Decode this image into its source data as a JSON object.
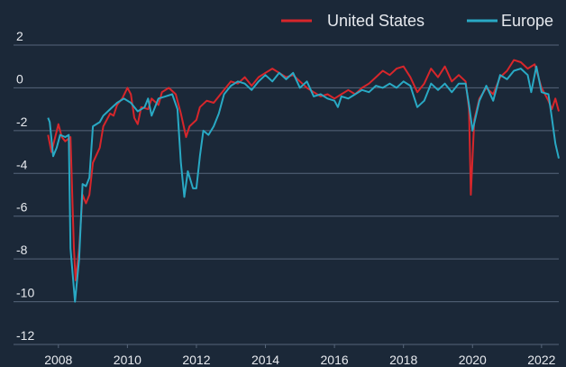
{
  "chart_data": {
    "type": "line",
    "series": [
      {
        "name": "United States",
        "color": "#d7262b",
        "x": [
          2007.7,
          2007.8,
          2008.0,
          2008.1,
          2008.2,
          2008.35,
          2008.45,
          2008.5,
          2008.6,
          2008.7,
          2008.8,
          2008.9,
          2009.0,
          2009.2,
          2009.3,
          2009.5,
          2009.6,
          2009.7,
          2009.85,
          2010.0,
          2010.1,
          2010.2,
          2010.3,
          2010.4,
          2010.6,
          2010.7,
          2010.9,
          2011.0,
          2011.2,
          2011.4,
          2011.55,
          2011.7,
          2011.8,
          2012.0,
          2012.1,
          2012.3,
          2012.5,
          2012.7,
          2012.85,
          2013.0,
          2013.2,
          2013.4,
          2013.6,
          2013.8,
          2014.0,
          2014.2,
          2014.4,
          2014.6,
          2014.8,
          2015.0,
          2015.2,
          2015.4,
          2015.6,
          2015.8,
          2016.0,
          2016.2,
          2016.4,
          2016.6,
          2016.8,
          2017.0,
          2017.2,
          2017.4,
          2017.6,
          2017.8,
          2018.0,
          2018.2,
          2018.4,
          2018.6,
          2018.8,
          2019.0,
          2019.2,
          2019.4,
          2019.6,
          2019.8,
          2019.9,
          2019.95,
          2020.05,
          2020.2,
          2020.4,
          2020.6,
          2020.8,
          2021.0,
          2021.2,
          2021.4,
          2021.6,
          2021.8,
          2022.0,
          2022.2,
          2022.3,
          2022.4,
          2022.5
        ],
        "values": [
          -2.2,
          -3.0,
          -1.7,
          -2.3,
          -2.5,
          -2.3,
          -7.5,
          -9.0,
          -7.5,
          -5.0,
          -5.4,
          -5.0,
          -3.5,
          -2.8,
          -1.8,
          -1.2,
          -1.3,
          -0.8,
          -0.5,
          0.0,
          -0.3,
          -1.4,
          -1.7,
          -0.9,
          -1.0,
          -0.5,
          -0.8,
          -0.2,
          0.0,
          -0.3,
          -1.2,
          -2.3,
          -1.8,
          -1.5,
          -0.9,
          -0.6,
          -0.7,
          -0.3,
          0.0,
          0.3,
          0.2,
          0.5,
          0.1,
          0.5,
          0.7,
          0.9,
          0.7,
          0.5,
          0.6,
          0.3,
          0.0,
          -0.2,
          -0.4,
          -0.3,
          -0.5,
          -0.3,
          -0.1,
          -0.3,
          0.0,
          0.2,
          0.5,
          0.8,
          0.6,
          0.9,
          1.0,
          0.5,
          -0.2,
          0.2,
          0.9,
          0.5,
          1.0,
          0.3,
          0.6,
          0.3,
          -1.0,
          -5.0,
          -1.5,
          -0.5,
          0.0,
          -0.3,
          0.5,
          0.8,
          1.3,
          1.2,
          0.9,
          1.1,
          0.0,
          -0.6,
          -1.0,
          -0.5,
          -1.1
        ]
      },
      {
        "name": "Europe",
        "color": "#29a9c4",
        "x": [
          2007.7,
          2007.75,
          2007.85,
          2007.95,
          2008.05,
          2008.2,
          2008.3,
          2008.35,
          2008.48,
          2008.6,
          2008.7,
          2008.8,
          2008.9,
          2009.0,
          2009.2,
          2009.3,
          2009.5,
          2009.7,
          2009.9,
          2010.1,
          2010.3,
          2010.5,
          2010.6,
          2010.7,
          2010.9,
          2011.1,
          2011.3,
          2011.45,
          2011.55,
          2011.65,
          2011.75,
          2011.9,
          2012.0,
          2012.1,
          2012.2,
          2012.35,
          2012.5,
          2012.65,
          2012.8,
          2013.0,
          2013.2,
          2013.4,
          2013.6,
          2013.8,
          2014.0,
          2014.2,
          2014.4,
          2014.6,
          2014.8,
          2015.0,
          2015.2,
          2015.4,
          2015.6,
          2015.8,
          2016.0,
          2016.1,
          2016.2,
          2016.4,
          2016.6,
          2016.8,
          2017.0,
          2017.2,
          2017.4,
          2017.6,
          2017.8,
          2018.0,
          2018.2,
          2018.4,
          2018.6,
          2018.8,
          2019.0,
          2019.2,
          2019.4,
          2019.6,
          2019.8,
          2019.9,
          2020.0,
          2020.2,
          2020.4,
          2020.6,
          2020.8,
          2021.0,
          2021.2,
          2021.4,
          2021.6,
          2021.7,
          2021.85,
          2022.0,
          2022.2,
          2022.3,
          2022.4,
          2022.5
        ],
        "values": [
          -1.4,
          -1.6,
          -3.2,
          -2.8,
          -2.2,
          -2.3,
          -2.2,
          -7.5,
          -10.0,
          -8.0,
          -4.5,
          -4.6,
          -4.2,
          -1.8,
          -1.6,
          -1.3,
          -1.0,
          -0.7,
          -0.5,
          -0.7,
          -1.1,
          -0.9,
          -0.5,
          -1.3,
          -0.5,
          -0.4,
          -0.3,
          -1.0,
          -3.5,
          -5.1,
          -3.9,
          -4.7,
          -4.7,
          -3.2,
          -2.0,
          -2.2,
          -1.8,
          -1.2,
          -0.3,
          0.1,
          0.3,
          0.2,
          -0.1,
          0.3,
          0.6,
          0.3,
          0.7,
          0.4,
          0.7,
          0.0,
          0.3,
          -0.4,
          -0.3,
          -0.5,
          -0.6,
          -0.9,
          -0.4,
          -0.5,
          -0.3,
          -0.1,
          -0.2,
          0.1,
          0.0,
          0.2,
          0.0,
          0.3,
          0.1,
          -0.9,
          -0.6,
          0.2,
          -0.1,
          0.2,
          -0.2,
          0.2,
          0.2,
          -0.8,
          -2.0,
          -0.6,
          0.1,
          -0.6,
          0.6,
          0.4,
          0.8,
          0.9,
          0.6,
          -0.2,
          1.0,
          -0.2,
          -0.3,
          -1.4,
          -2.6,
          -3.3
        ]
      }
    ],
    "xlim": [
      2006.7,
      2022.5
    ],
    "xticks": [
      2008,
      2010,
      2012,
      2014,
      2016,
      2018,
      2020,
      2022
    ],
    "ylim": [
      -12,
      2
    ],
    "yticks": [
      2,
      0,
      -2,
      -4,
      -6,
      -8,
      -10,
      -12
    ],
    "grid": true,
    "legend": "top-right"
  }
}
